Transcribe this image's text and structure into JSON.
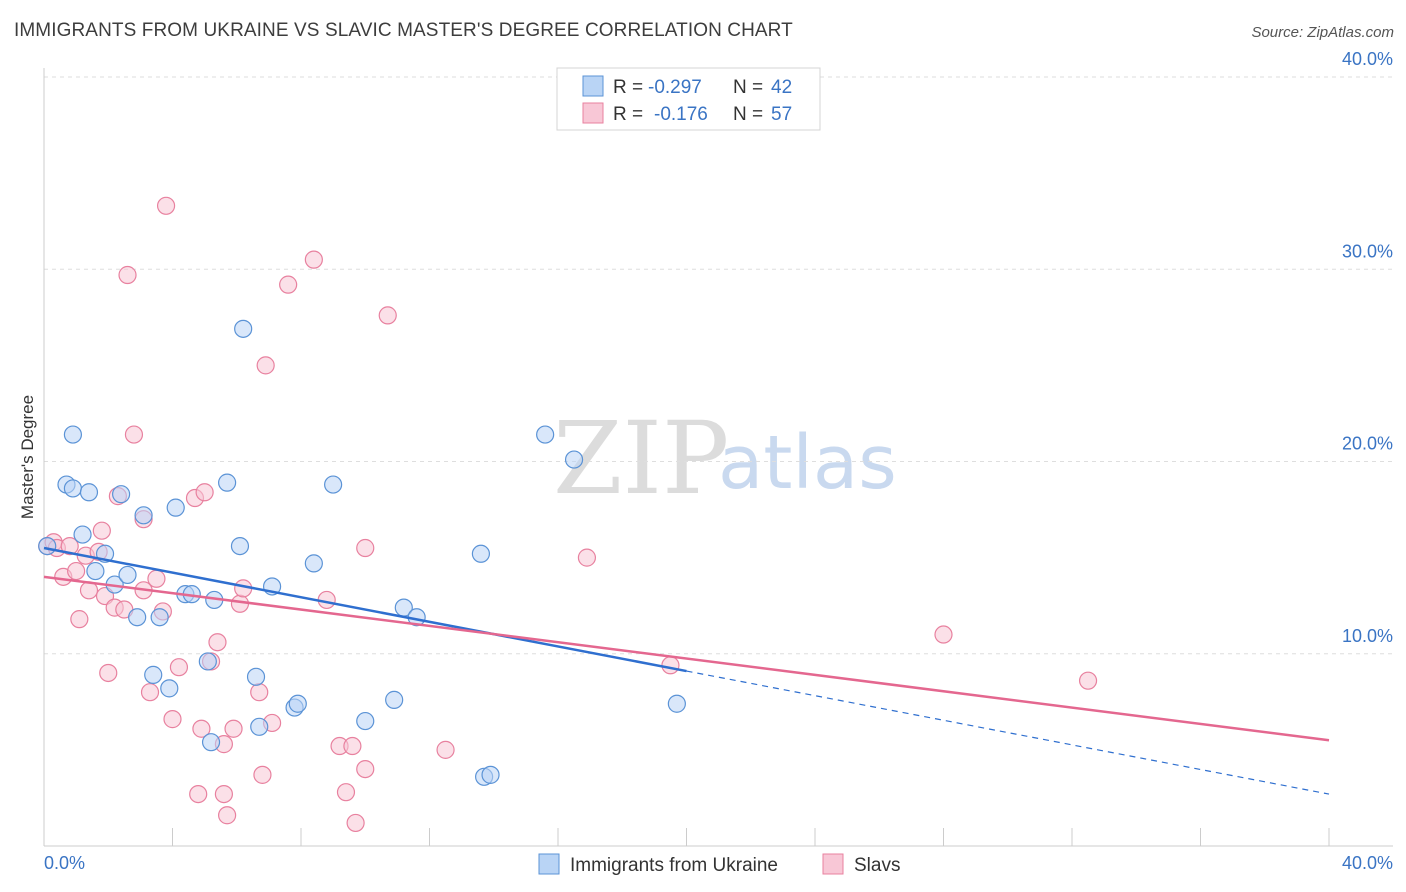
{
  "title": "IMMIGRANTS FROM UKRAINE VS SLAVIC MASTER'S DEGREE CORRELATION CHART",
  "source": "Source: ZipAtlas.com",
  "watermark": {
    "zip": "ZIP",
    "atlas": "atlas"
  },
  "colors": {
    "blue_fill": "#b9d4f5",
    "blue_stroke": "#5b93d6",
    "blue_line": "#2f6fcf",
    "pink_fill": "#f8c7d6",
    "pink_stroke": "#e8819f",
    "pink_line": "#e4678f",
    "axis_text": "#3a74c4",
    "grid": "#dedede"
  },
  "legend": {
    "rows": [
      {
        "r_label": "R =",
        "r_value": "-0.297",
        "n_label": "N =",
        "n_value": "42"
      },
      {
        "r_label": "R =",
        "r_value": "-0.176",
        "n_label": "N =",
        "n_value": "57"
      }
    ]
  },
  "chart_data": {
    "type": "scatter",
    "title": "IMMIGRANTS FROM UKRAINE VS SLAVIC MASTER'S DEGREE CORRELATION CHART",
    "xlabel": "",
    "ylabel": "Master's Degree",
    "xlim": [
      0,
      40
    ],
    "ylim": [
      0,
      40
    ],
    "x_tick_labels": [
      "0.0%",
      "40.0%"
    ],
    "y_tick_values": [
      10,
      20,
      30,
      40
    ],
    "y_tick_labels": [
      "10.0%",
      "20.0%",
      "30.0%",
      "40.0%"
    ],
    "x_tick_marks": [
      0,
      4,
      8,
      12,
      16,
      20,
      24,
      28,
      32,
      36,
      40
    ],
    "grid": true,
    "series": [
      {
        "name": "Immigrants from Ukraine",
        "color": "blue",
        "R": -0.297,
        "N": 42,
        "trend": {
          "x0": 0,
          "y0": 15.5,
          "x1": 40,
          "y1": 2.7,
          "solid_until": 20
        },
        "points": [
          [
            0.1,
            15.6
          ],
          [
            0.7,
            18.8
          ],
          [
            0.9,
            18.6
          ],
          [
            0.9,
            21.4
          ],
          [
            1.2,
            16.2
          ],
          [
            1.4,
            18.4
          ],
          [
            1.6,
            14.3
          ],
          [
            1.9,
            15.2
          ],
          [
            2.2,
            13.6
          ],
          [
            2.4,
            18.3
          ],
          [
            2.6,
            14.1
          ],
          [
            2.9,
            11.9
          ],
          [
            3.1,
            17.2
          ],
          [
            3.4,
            8.9
          ],
          [
            3.6,
            11.9
          ],
          [
            3.9,
            8.2
          ],
          [
            4.1,
            17.6
          ],
          [
            4.4,
            13.1
          ],
          [
            4.6,
            13.1
          ],
          [
            5.1,
            9.6
          ],
          [
            5.2,
            5.4
          ],
          [
            5.3,
            12.8
          ],
          [
            5.7,
            18.9
          ],
          [
            6.1,
            15.6
          ],
          [
            6.2,
            26.9
          ],
          [
            6.6,
            8.8
          ],
          [
            6.7,
            6.2
          ],
          [
            7.1,
            13.5
          ],
          [
            7.8,
            7.2
          ],
          [
            7.9,
            7.4
          ],
          [
            8.4,
            14.7
          ],
          [
            9.0,
            18.8
          ],
          [
            10.0,
            6.5
          ],
          [
            10.9,
            7.6
          ],
          [
            11.2,
            12.4
          ],
          [
            11.6,
            11.9
          ],
          [
            13.6,
            15.2
          ],
          [
            13.7,
            3.6
          ],
          [
            13.9,
            3.7
          ],
          [
            15.6,
            21.4
          ],
          [
            16.5,
            20.1
          ],
          [
            19.7,
            7.4
          ]
        ]
      },
      {
        "name": "Slavs",
        "color": "pink",
        "R": -0.176,
        "N": 57,
        "trend": {
          "x0": 0,
          "y0": 14.0,
          "x1": 40,
          "y1": 5.5
        },
        "points": [
          [
            0.1,
            15.6
          ],
          [
            0.3,
            15.8
          ],
          [
            0.4,
            15.5
          ],
          [
            0.6,
            14.0
          ],
          [
            0.8,
            15.6
          ],
          [
            1.0,
            14.3
          ],
          [
            1.1,
            11.8
          ],
          [
            1.3,
            15.1
          ],
          [
            1.4,
            13.3
          ],
          [
            1.7,
            15.3
          ],
          [
            1.8,
            16.4
          ],
          [
            1.9,
            13.0
          ],
          [
            2.0,
            9.0
          ],
          [
            2.2,
            12.4
          ],
          [
            2.3,
            18.2
          ],
          [
            2.5,
            12.3
          ],
          [
            2.6,
            29.7
          ],
          [
            2.8,
            21.4
          ],
          [
            3.1,
            17.0
          ],
          [
            3.1,
            13.3
          ],
          [
            3.3,
            8.0
          ],
          [
            3.5,
            13.9
          ],
          [
            3.7,
            12.2
          ],
          [
            3.8,
            33.3
          ],
          [
            4.0,
            6.6
          ],
          [
            4.2,
            9.3
          ],
          [
            4.7,
            18.1
          ],
          [
            4.8,
            2.7
          ],
          [
            4.9,
            6.1
          ],
          [
            5.0,
            18.4
          ],
          [
            5.2,
            9.6
          ],
          [
            5.4,
            10.6
          ],
          [
            5.6,
            2.7
          ],
          [
            5.6,
            5.3
          ],
          [
            5.7,
            1.6
          ],
          [
            5.9,
            6.1
          ],
          [
            6.1,
            12.6
          ],
          [
            6.2,
            13.4
          ],
          [
            6.7,
            8.0
          ],
          [
            6.8,
            3.7
          ],
          [
            6.9,
            25.0
          ],
          [
            7.1,
            6.4
          ],
          [
            7.6,
            29.2
          ],
          [
            8.4,
            30.5
          ],
          [
            8.8,
            12.8
          ],
          [
            9.2,
            5.2
          ],
          [
            9.4,
            2.8
          ],
          [
            9.6,
            5.2
          ],
          [
            9.7,
            1.2
          ],
          [
            10.0,
            4.0
          ],
          [
            10.0,
            15.5
          ],
          [
            10.7,
            27.6
          ],
          [
            12.5,
            5.0
          ],
          [
            16.9,
            15.0
          ],
          [
            19.5,
            9.4
          ],
          [
            28.0,
            11.0
          ],
          [
            32.5,
            8.6
          ]
        ]
      }
    ]
  }
}
